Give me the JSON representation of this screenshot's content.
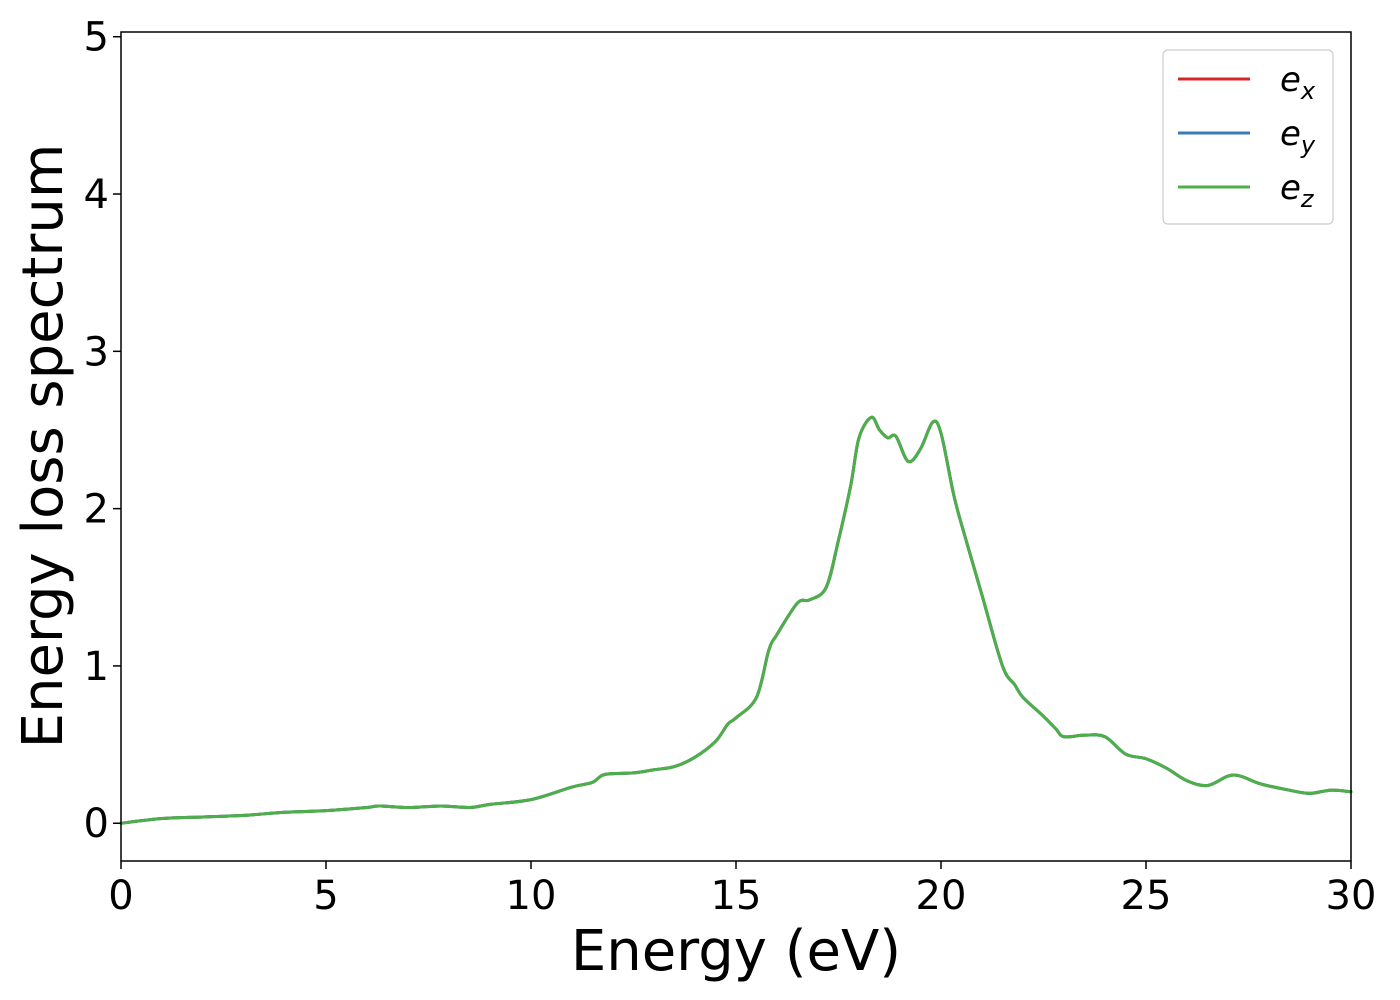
{
  "chart_data": {
    "type": "line",
    "xlabel": "Energy (eV)",
    "ylabel": "Energy loss spectrum",
    "xlim": [
      0,
      30
    ],
    "ylim": [
      -0.24,
      5.03
    ],
    "xticks": [
      0,
      5,
      10,
      15,
      20,
      25,
      30
    ],
    "yticks": [
      0,
      1,
      2,
      3,
      4,
      5
    ],
    "grid": false,
    "legend_position": "top-right",
    "series": [
      {
        "name": "e_x",
        "legend_base": "e",
        "legend_sub": "x",
        "color": "#d62728",
        "x": [
          0,
          1,
          2,
          3,
          4,
          5,
          6,
          6.3,
          7,
          7.8,
          8.5,
          9,
          10,
          11,
          11.5,
          11.8,
          12.5,
          13,
          13.5,
          14,
          14.5,
          14.8,
          15,
          15.5,
          15.8,
          16,
          16.5,
          16.8,
          17.2,
          17.5,
          17.8,
          18,
          18.3,
          18.5,
          18.7,
          18.9,
          19.2,
          19.5,
          19.8,
          20,
          20.3,
          20.5,
          21,
          21.5,
          21.8,
          22,
          22.5,
          22.8,
          23,
          23.5,
          24,
          24.5,
          25,
          25.5,
          26,
          26.5,
          27,
          27.3,
          27.8,
          28.5,
          29,
          29.5,
          30
        ],
        "values": [
          0,
          0.03,
          0.04,
          0.05,
          0.07,
          0.08,
          0.1,
          0.11,
          0.1,
          0.11,
          0.1,
          0.12,
          0.15,
          0.23,
          0.26,
          0.31,
          0.32,
          0.34,
          0.36,
          0.42,
          0.52,
          0.63,
          0.67,
          0.8,
          1.1,
          1.2,
          1.4,
          1.42,
          1.5,
          1.8,
          2.15,
          2.45,
          2.58,
          2.5,
          2.45,
          2.46,
          2.3,
          2.38,
          2.55,
          2.48,
          2.1,
          1.9,
          1.45,
          1.0,
          0.88,
          0.8,
          0.68,
          0.6,
          0.55,
          0.56,
          0.55,
          0.44,
          0.41,
          0.35,
          0.27,
          0.24,
          0.3,
          0.3,
          0.25,
          0.21,
          0.19,
          0.21,
          0.2
        ]
      },
      {
        "name": "e_y",
        "legend_base": "e",
        "legend_sub": "y",
        "color": "#377eb8",
        "x": [
          0,
          1,
          2,
          3,
          4,
          5,
          6,
          6.3,
          7,
          7.8,
          8.5,
          9,
          10,
          11,
          11.5,
          11.8,
          12.5,
          13,
          13.5,
          14,
          14.5,
          14.8,
          15,
          15.5,
          15.8,
          16,
          16.5,
          16.8,
          17.2,
          17.5,
          17.8,
          18,
          18.3,
          18.5,
          18.7,
          18.9,
          19.2,
          19.5,
          19.8,
          20,
          20.3,
          20.5,
          21,
          21.5,
          21.8,
          22,
          22.5,
          22.8,
          23,
          23.5,
          24,
          24.5,
          25,
          25.5,
          26,
          26.5,
          27,
          27.3,
          27.8,
          28.5,
          29,
          29.5,
          30
        ],
        "values": [
          0,
          0.03,
          0.04,
          0.05,
          0.07,
          0.08,
          0.1,
          0.11,
          0.1,
          0.11,
          0.1,
          0.12,
          0.15,
          0.23,
          0.26,
          0.31,
          0.32,
          0.34,
          0.36,
          0.42,
          0.52,
          0.63,
          0.67,
          0.8,
          1.1,
          1.2,
          1.4,
          1.42,
          1.5,
          1.8,
          2.15,
          2.45,
          2.58,
          2.5,
          2.45,
          2.46,
          2.3,
          2.38,
          2.55,
          2.48,
          2.1,
          1.9,
          1.45,
          1.0,
          0.88,
          0.8,
          0.68,
          0.6,
          0.55,
          0.56,
          0.55,
          0.44,
          0.41,
          0.35,
          0.27,
          0.24,
          0.3,
          0.3,
          0.25,
          0.21,
          0.19,
          0.21,
          0.2
        ]
      },
      {
        "name": "e_z",
        "legend_base": "e",
        "legend_sub": "z",
        "color": "#4daf4a",
        "x": [
          0,
          1,
          2,
          3,
          4,
          5,
          6,
          6.3,
          7,
          7.8,
          8.5,
          9,
          10,
          11,
          11.5,
          11.8,
          12.5,
          13,
          13.5,
          14,
          14.5,
          14.8,
          15,
          15.5,
          15.8,
          16,
          16.5,
          16.8,
          17.2,
          17.5,
          17.8,
          18,
          18.3,
          18.5,
          18.7,
          18.9,
          19.2,
          19.5,
          19.8,
          20,
          20.3,
          20.5,
          21,
          21.5,
          21.8,
          22,
          22.5,
          22.8,
          23,
          23.5,
          24,
          24.5,
          25,
          25.5,
          26,
          26.5,
          27,
          27.3,
          27.8,
          28.5,
          29,
          29.5,
          30
        ],
        "values": [
          0,
          0.03,
          0.04,
          0.05,
          0.07,
          0.08,
          0.1,
          0.11,
          0.1,
          0.11,
          0.1,
          0.12,
          0.15,
          0.23,
          0.26,
          0.31,
          0.32,
          0.34,
          0.36,
          0.42,
          0.52,
          0.63,
          0.67,
          0.8,
          1.1,
          1.2,
          1.4,
          1.42,
          1.5,
          1.8,
          2.15,
          2.45,
          2.58,
          2.5,
          2.45,
          2.46,
          2.3,
          2.38,
          2.55,
          2.48,
          2.1,
          1.9,
          1.45,
          1.0,
          0.88,
          0.8,
          0.68,
          0.6,
          0.55,
          0.56,
          0.55,
          0.44,
          0.41,
          0.35,
          0.27,
          0.24,
          0.3,
          0.3,
          0.25,
          0.21,
          0.19,
          0.21,
          0.2
        ]
      }
    ]
  }
}
